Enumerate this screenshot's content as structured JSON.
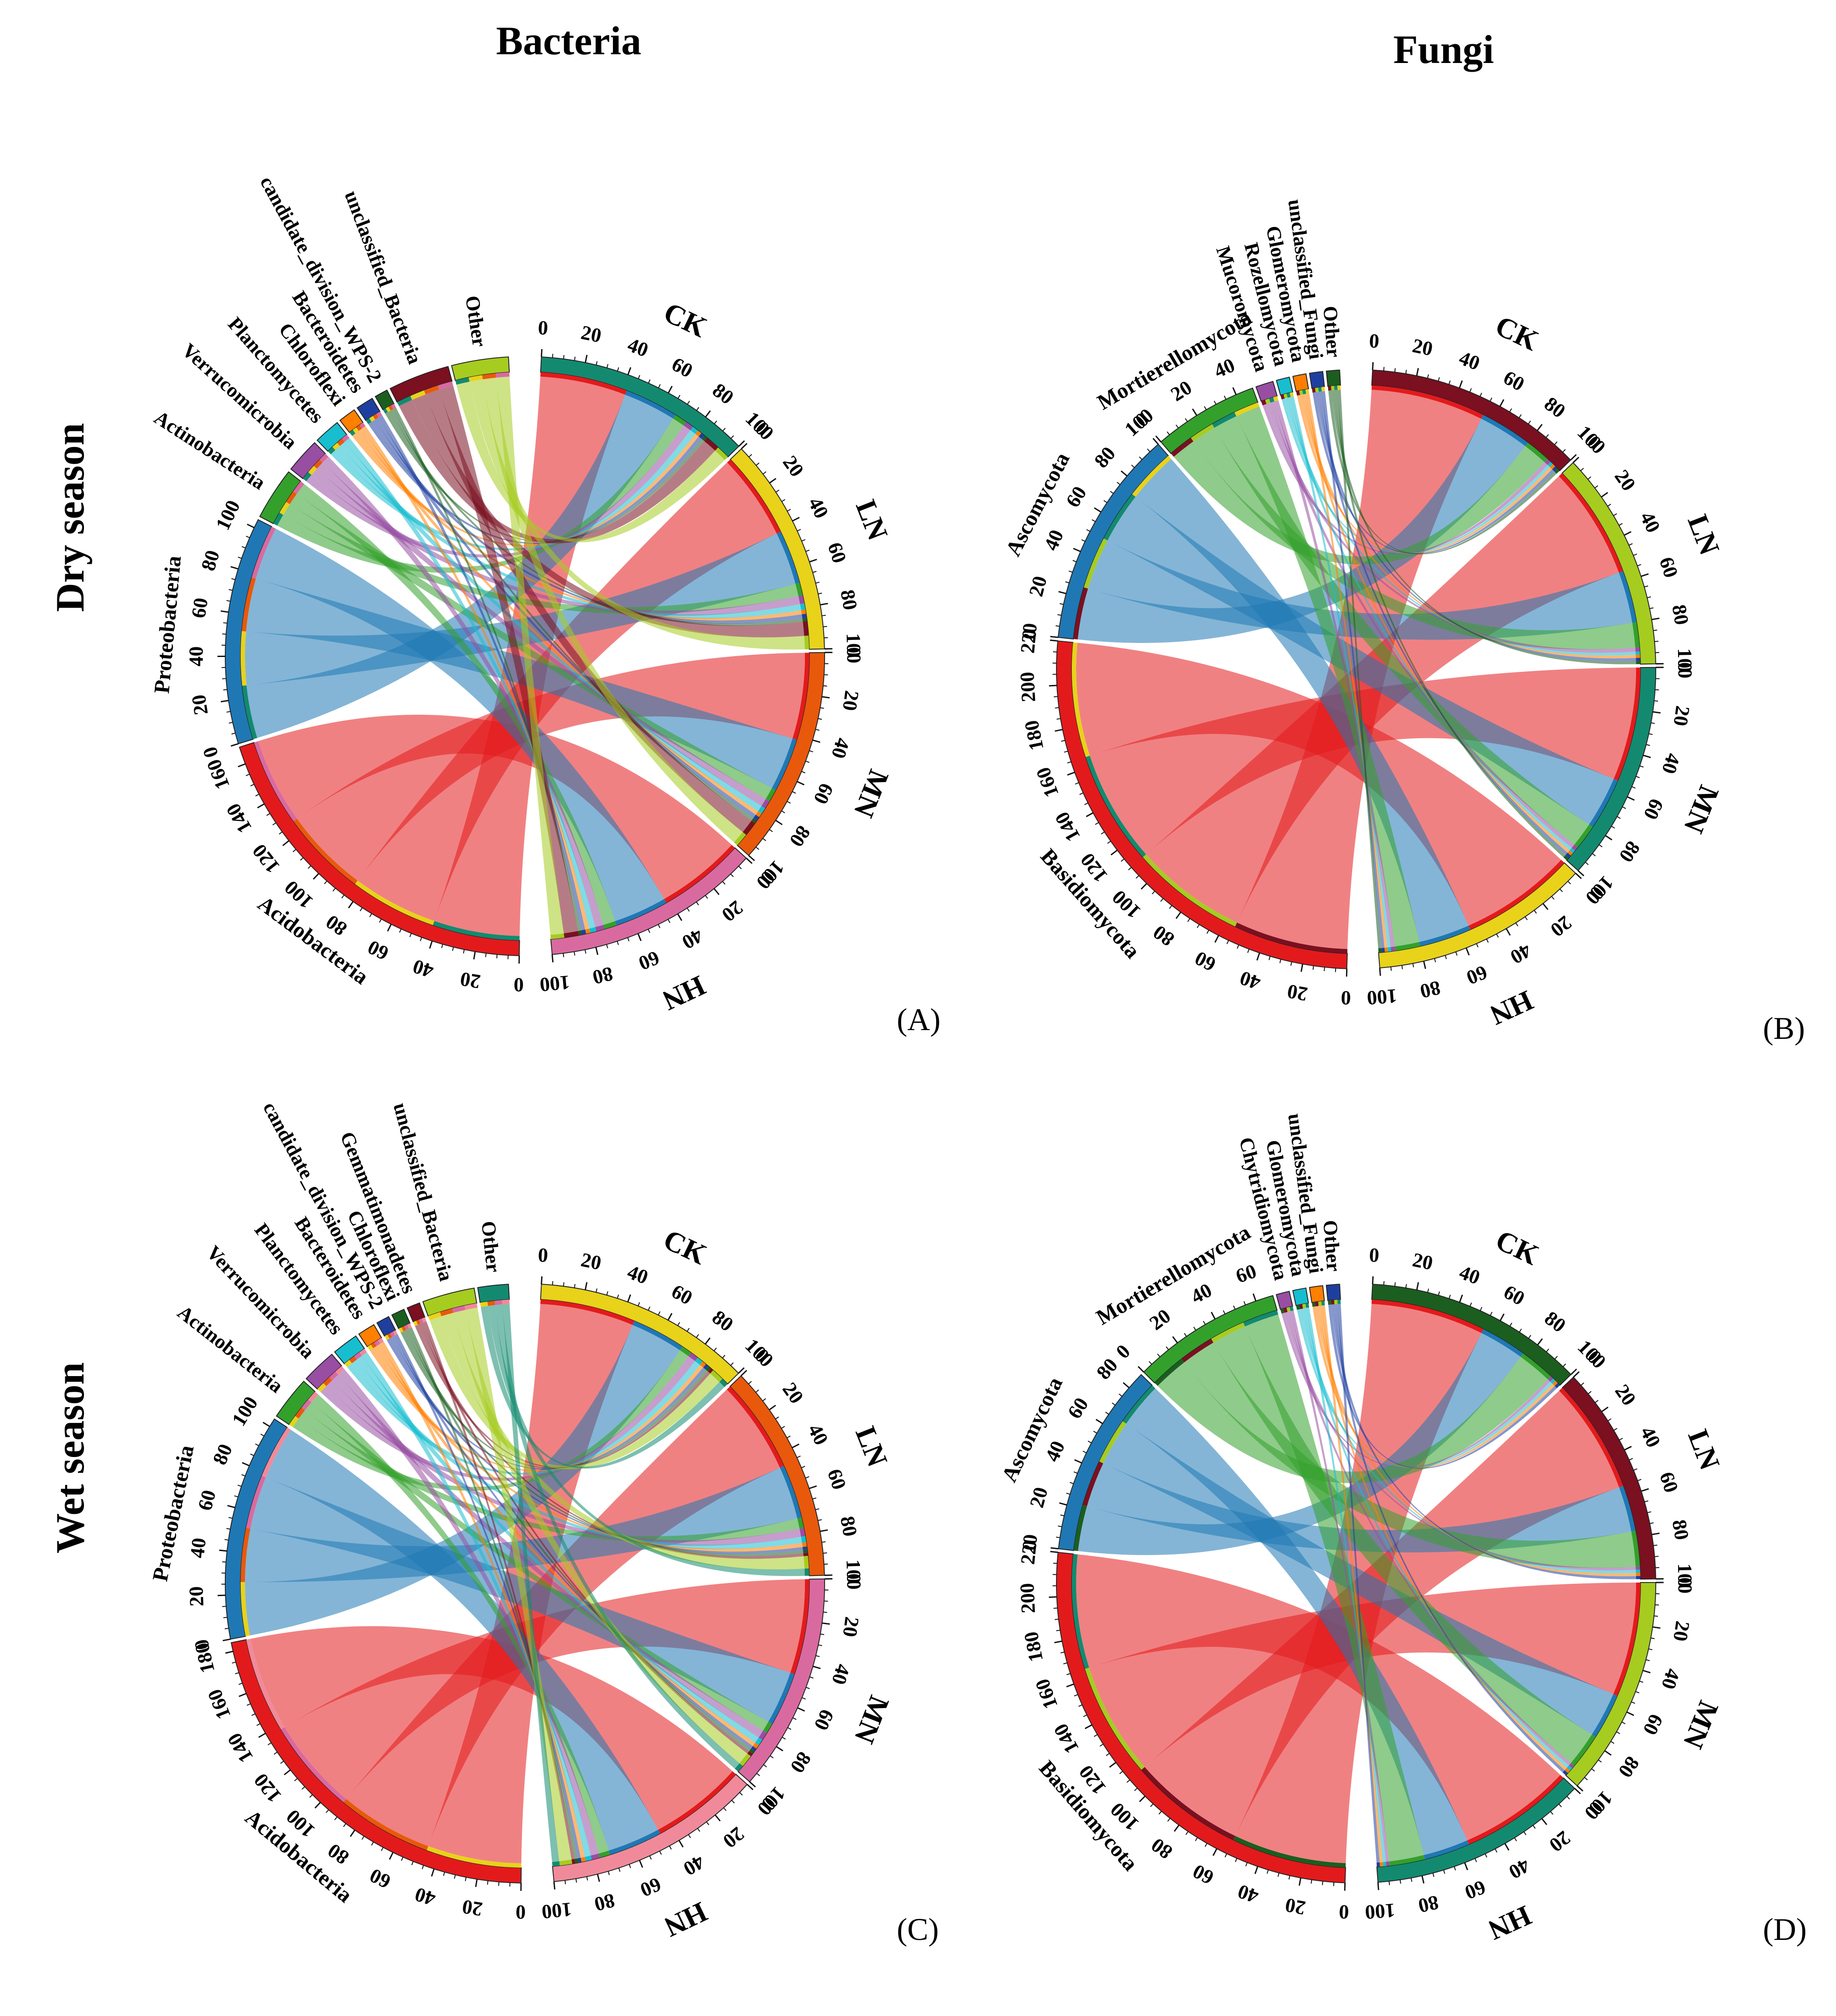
{
  "column_titles": [
    "Bacteria",
    "Fungi"
  ],
  "row_titles": [
    "Dry season",
    "Wet season"
  ],
  "colors": {
    "CK": "#1b9e77",
    "LN": "#e6c820",
    "MN": "#e8590c",
    "HN": "#d96aa0"
  },
  "chart_data": [
    {
      "type": "chord",
      "panel": "(A)",
      "season": "Dry season",
      "kingdom": "Bacteria",
      "treatments": [
        {
          "name": "CK",
          "total": 100,
          "ticks": [
            "0",
            "20",
            "40",
            "60",
            "80",
            "100"
          ],
          "color": "#138a70"
        },
        {
          "name": "LN",
          "total": 100,
          "ticks": [
            "0",
            "20",
            "40",
            "60",
            "80",
            "100"
          ],
          "color": "#e8d21a"
        },
        {
          "name": "MN",
          "total": 100,
          "ticks": [
            "0",
            "20",
            "40",
            "60",
            "80",
            "100"
          ],
          "color": "#e8590c"
        },
        {
          "name": "HN",
          "total": 100,
          "ticks": [
            "0",
            "20",
            "40",
            "60",
            "80",
            "100"
          ],
          "color": "#d96aa0"
        }
      ],
      "taxa": [
        {
          "name": "Acidobacteria",
          "color": "#e31a1c",
          "ticks": [
            "0",
            "20",
            "40",
            "60",
            "80",
            "100",
            "120",
            "140",
            "160"
          ],
          "values": [
            42,
            42,
            42,
            42
          ]
        },
        {
          "name": "Proteobacteria",
          "color": "#1f78b4",
          "ticks": [
            "0",
            "20",
            "40",
            "60",
            "80",
            "100"
          ],
          "values": [
            26,
            26,
            26,
            26
          ]
        },
        {
          "name": "Actinobacteria",
          "color": "#33a02c",
          "ticks": [],
          "values": [
            6,
            6,
            6,
            6
          ]
        },
        {
          "name": "Verrucomicrobia",
          "color": "#984ea3",
          "ticks": [],
          "values": [
            4,
            4,
            4,
            4
          ]
        },
        {
          "name": "Planctomycetes",
          "color": "#17becf",
          "ticks": [],
          "values": [
            3,
            3,
            3,
            3
          ]
        },
        {
          "name": "Chloroflexi",
          "color": "#ff7f00",
          "ticks": [],
          "values": [
            2,
            2,
            2,
            2
          ]
        },
        {
          "name": "Bacteroidetes",
          "color": "#1f3fa0",
          "ticks": [],
          "values": [
            2,
            2,
            2,
            2
          ]
        },
        {
          "name": "candidate_division_WPS-2",
          "color": "#1b5e20",
          "ticks": [],
          "values": [
            1.5,
            1.5,
            1.5,
            1.5
          ]
        },
        {
          "name": "unclassified_Bacteria",
          "color": "#7a1020",
          "ticks": [],
          "values": [
            7,
            7,
            7,
            7
          ]
        },
        {
          "name": "Other",
          "color": "#a6cc20",
          "ticks": [],
          "values": [
            6.5,
            6.5,
            6.5,
            6.5
          ]
        }
      ]
    },
    {
      "type": "chord",
      "panel": "(B)",
      "season": "Dry season",
      "kingdom": "Fungi",
      "treatments": [
        {
          "name": "CK",
          "total": 100,
          "ticks": [
            "0",
            "20",
            "40",
            "60",
            "80",
            "100"
          ],
          "color": "#7a1020"
        },
        {
          "name": "LN",
          "total": 100,
          "ticks": [
            "0",
            "20",
            "40",
            "60",
            "80",
            "100"
          ],
          "color": "#a6cc20"
        },
        {
          "name": "MN",
          "total": 100,
          "ticks": [
            "0",
            "20",
            "40",
            "60",
            "80",
            "100"
          ],
          "color": "#138a70"
        },
        {
          "name": "HN",
          "total": 100,
          "ticks": [
            "0",
            "20",
            "40",
            "60",
            "80",
            "100"
          ],
          "color": "#e8d21a"
        }
      ],
      "taxa": [
        {
          "name": "Basidiomycota",
          "color": "#e31a1c",
          "ticks": [
            "0",
            "20",
            "40",
            "60",
            "80",
            "100",
            "120",
            "140",
            "160",
            "180",
            "200",
            "220"
          ],
          "values": [
            55,
            55,
            55,
            55
          ]
        },
        {
          "name": "Ascomycota",
          "color": "#1f78b4",
          "ticks": [
            "0",
            "20",
            "40",
            "60",
            "80",
            "100"
          ],
          "values": [
            25,
            25,
            25,
            25
          ]
        },
        {
          "name": "Mortierellomycota",
          "color": "#33a02c",
          "ticks": [
            "0",
            "20",
            "40"
          ],
          "values": [
            12,
            12,
            12,
            12
          ]
        },
        {
          "name": "Mucoromycota",
          "color": "#984ea3",
          "ticks": [],
          "values": [
            2,
            2,
            2,
            2
          ]
        },
        {
          "name": "Rozellomycota",
          "color": "#17becf",
          "ticks": [],
          "values": [
            1.5,
            1.5,
            1.5,
            1.5
          ]
        },
        {
          "name": "Glomeromycota",
          "color": "#ff7f00",
          "ticks": [],
          "values": [
            1.5,
            1.5,
            1.5,
            1.5
          ]
        },
        {
          "name": "unclassified_Fungi",
          "color": "#1f3fa0",
          "ticks": [],
          "values": [
            1.5,
            1.5,
            1.5,
            1.5
          ]
        },
        {
          "name": "Other",
          "color": "#1b5e20",
          "ticks": [],
          "values": [
            1.5,
            1.5,
            1.5,
            1.5
          ]
        }
      ]
    },
    {
      "type": "chord",
      "panel": "(C)",
      "season": "Wet season",
      "kingdom": "Bacteria",
      "treatments": [
        {
          "name": "CK",
          "total": 100,
          "ticks": [
            "0",
            "20",
            "40",
            "60",
            "80",
            "100"
          ],
          "color": "#e8d21a"
        },
        {
          "name": "LN",
          "total": 100,
          "ticks": [
            "0",
            "20",
            "40",
            "60",
            "80",
            "100"
          ],
          "color": "#e8590c"
        },
        {
          "name": "MN",
          "total": 100,
          "ticks": [
            "0",
            "20",
            "40",
            "60",
            "80",
            "100"
          ],
          "color": "#d96aa0"
        },
        {
          "name": "HN",
          "total": 100,
          "ticks": [
            "0",
            "20",
            "40",
            "60",
            "80",
            "100"
          ],
          "color": "#f08a9a"
        }
      ],
      "taxa": [
        {
          "name": "Acidobacteria",
          "color": "#e31a1c",
          "ticks": [
            "0",
            "20",
            "40",
            "60",
            "80",
            "100",
            "120",
            "140",
            "160",
            "180"
          ],
          "values": [
            46,
            46,
            46,
            46
          ]
        },
        {
          "name": "Proteobacteria",
          "color": "#1f78b4",
          "ticks": [
            "0",
            "20",
            "40",
            "60",
            "80",
            "100"
          ],
          "values": [
            26,
            26,
            26,
            26
          ]
        },
        {
          "name": "Actinobacteria",
          "color": "#33a02c",
          "ticks": [],
          "values": [
            5,
            5,
            5,
            5
          ]
        },
        {
          "name": "Verrucomicrobia",
          "color": "#984ea3",
          "ticks": [],
          "values": [
            4,
            4,
            4,
            4
          ]
        },
        {
          "name": "Planctomycetes",
          "color": "#17becf",
          "ticks": [],
          "values": [
            3,
            3,
            3,
            3
          ]
        },
        {
          "name": "Bacteroidetes",
          "color": "#ff7f00",
          "ticks": [],
          "values": [
            2,
            2,
            2,
            2
          ]
        },
        {
          "name": "candidate_division_WPS-2",
          "color": "#1f3fa0",
          "ticks": [],
          "values": [
            1.5,
            1.5,
            1.5,
            1.5
          ]
        },
        {
          "name": "Chloroflexi",
          "color": "#1b5e20",
          "ticks": [],
          "values": [
            1.5,
            1.5,
            1.5,
            1.5
          ]
        },
        {
          "name": "Gemmatimonadetes",
          "color": "#7a1020",
          "ticks": [],
          "values": [
            1.5,
            1.5,
            1.5,
            1.5
          ]
        },
        {
          "name": "unclassified_Bacteria",
          "color": "#a6cc20",
          "ticks": [],
          "values": [
            6,
            6,
            6,
            6
          ]
        },
        {
          "name": "Other",
          "color": "#138a70",
          "ticks": [],
          "values": [
            3.5,
            3.5,
            3.5,
            3.5
          ]
        }
      ]
    },
    {
      "type": "chord",
      "panel": "(D)",
      "season": "Wet season",
      "kingdom": "Fungi",
      "treatments": [
        {
          "name": "CK",
          "total": 100,
          "ticks": [
            "0",
            "20",
            "40",
            "60",
            "80",
            "100"
          ],
          "color": "#1b5e20"
        },
        {
          "name": "LN",
          "total": 100,
          "ticks": [
            "0",
            "20",
            "40",
            "60",
            "80",
            "100"
          ],
          "color": "#7a1020"
        },
        {
          "name": "MN",
          "total": 100,
          "ticks": [
            "0",
            "20",
            "40",
            "60",
            "80",
            "100"
          ],
          "color": "#a6cc20"
        },
        {
          "name": "HN",
          "total": 100,
          "ticks": [
            "0",
            "20",
            "40",
            "60",
            "80",
            "100"
          ],
          "color": "#138a70"
        }
      ],
      "taxa": [
        {
          "name": "Basidiomycota",
          "color": "#e31a1c",
          "ticks": [
            "0",
            "20",
            "40",
            "60",
            "80",
            "100",
            "120",
            "140",
            "160",
            "180",
            "200",
            "220"
          ],
          "values": [
            55,
            55,
            55,
            55
          ]
        },
        {
          "name": "Ascomycota",
          "color": "#1f78b4",
          "ticks": [
            "0",
            "20",
            "40",
            "60",
            "80"
          ],
          "values": [
            22,
            22,
            22,
            22
          ]
        },
        {
          "name": "Mortierellomycota",
          "color": "#33a02c",
          "ticks": [
            "0",
            "20",
            "40",
            "60"
          ],
          "values": [
            17,
            17,
            17,
            17
          ]
        },
        {
          "name": "Chytridiomycota",
          "color": "#984ea3",
          "ticks": [],
          "values": [
            1.5,
            1.5,
            1.5,
            1.5
          ]
        },
        {
          "name": "Glomeromycota",
          "color": "#17becf",
          "ticks": [],
          "values": [
            1.5,
            1.5,
            1.5,
            1.5
          ]
        },
        {
          "name": "unclassified_Fungi",
          "color": "#ff7f00",
          "ticks": [],
          "values": [
            1.5,
            1.5,
            1.5,
            1.5
          ]
        },
        {
          "name": "Other",
          "color": "#1f3fa0",
          "ticks": [],
          "values": [
            1.5,
            1.5,
            1.5,
            1.5
          ]
        }
      ]
    }
  ]
}
